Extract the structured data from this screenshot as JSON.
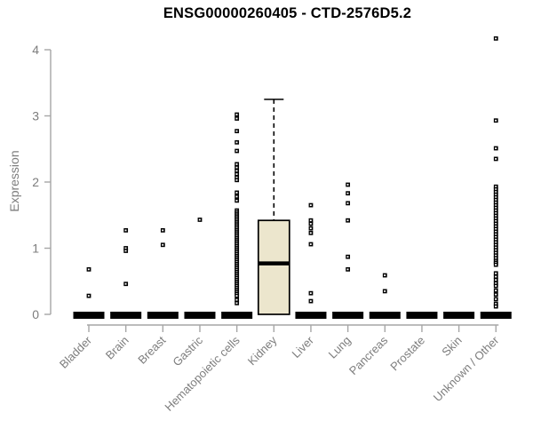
{
  "page": {
    "background_color": "#ffffff"
  },
  "chart_data": {
    "type": "boxplot",
    "title": "ENSG00000260405 - CTD-2576D5.2",
    "ylabel": "Expression",
    "xlabel": "",
    "ylim": [
      0,
      4.2
    ],
    "yticks": [
      0,
      1,
      2,
      3,
      4
    ],
    "grid": "off",
    "legend": "none",
    "colors": {
      "box_fill": "#ece6cd",
      "box_border": "#000000",
      "median": "#000000",
      "outlier": "#000000",
      "axis_line": "#a6a6a6",
      "tick_text": "#7d7d7d",
      "title_text": "#000000"
    },
    "categories": [
      "Bladder",
      "Brain",
      "Breast",
      "Gastric",
      "Hematopoietic cells",
      "Kidney",
      "Liver",
      "Lung",
      "Pancreas",
      "Prostate",
      "Skin",
      "Unknown / Other"
    ],
    "groups": [
      {
        "name": "Bladder",
        "median": 0,
        "q1": 0,
        "q3": 0,
        "whisker_low": 0,
        "whisker_high": 0,
        "outliers": [
          0.68,
          0.28
        ]
      },
      {
        "name": "Brain",
        "median": 0,
        "q1": 0,
        "q3": 0,
        "whisker_low": 0,
        "whisker_high": 0,
        "outliers": [
          1.27,
          1.0,
          0.96,
          0.46
        ]
      },
      {
        "name": "Breast",
        "median": 0,
        "q1": 0,
        "q3": 0,
        "whisker_low": 0,
        "whisker_high": 0,
        "outliers": [
          1.27,
          1.05
        ]
      },
      {
        "name": "Gastric",
        "median": 0,
        "q1": 0,
        "q3": 0,
        "whisker_low": 0,
        "whisker_high": 0,
        "outliers": [
          1.43
        ]
      },
      {
        "name": "Hematopoietic cells",
        "median": 0,
        "q1": 0,
        "q3": 0,
        "whisker_low": 0,
        "whisker_high": 0,
        "outliers": [
          3.02,
          2.96,
          2.77,
          2.6,
          2.47,
          2.27,
          2.22,
          2.17,
          2.12,
          2.07,
          2.03,
          1.84,
          1.78,
          1.72,
          1.57,
          1.54,
          1.51,
          1.48,
          1.45,
          1.42,
          1.39,
          1.36,
          1.33,
          1.3,
          1.27,
          1.24,
          1.21,
          1.18,
          1.15,
          1.12,
          1.09,
          1.06,
          1.03,
          1.0,
          0.97,
          0.94,
          0.91,
          0.88,
          0.85,
          0.82,
          0.79,
          0.76,
          0.73,
          0.7,
          0.67,
          0.64,
          0.61,
          0.58,
          0.55,
          0.52,
          0.49,
          0.46,
          0.43,
          0.4,
          0.37,
          0.34,
          0.31,
          0.28,
          0.22,
          0.17
        ]
      },
      {
        "name": "Kidney",
        "median": 0.77,
        "q1": 0,
        "q3": 1.42,
        "whisker_low": 0,
        "whisker_high": 3.25,
        "outliers": []
      },
      {
        "name": "Liver",
        "median": 0,
        "q1": 0,
        "q3": 0,
        "whisker_low": 0,
        "whisker_high": 0,
        "outliers": [
          1.65,
          1.42,
          1.37,
          1.3,
          1.23,
          1.06,
          0.32,
          0.2
        ]
      },
      {
        "name": "Lung",
        "median": 0,
        "q1": 0,
        "q3": 0,
        "whisker_low": 0,
        "whisker_high": 0,
        "outliers": [
          1.96,
          1.83,
          1.68,
          1.42,
          0.87,
          0.68
        ]
      },
      {
        "name": "Pancreas",
        "median": 0,
        "q1": 0,
        "q3": 0,
        "whisker_low": 0,
        "whisker_high": 0,
        "outliers": [
          0.59,
          0.35
        ]
      },
      {
        "name": "Prostate",
        "median": 0,
        "q1": 0,
        "q3": 0,
        "whisker_low": 0,
        "whisker_high": 0,
        "outliers": []
      },
      {
        "name": "Skin",
        "median": 0,
        "q1": 0,
        "q3": 0,
        "whisker_low": 0,
        "whisker_high": 0,
        "outliers": []
      },
      {
        "name": "Unknown / Other",
        "median": 0,
        "q1": 0,
        "q3": 0,
        "whisker_low": 0,
        "whisker_high": 0,
        "outliers": [
          4.17,
          2.93,
          2.51,
          2.35,
          1.93,
          1.89,
          1.85,
          1.81,
          1.77,
          1.73,
          1.69,
          1.65,
          1.61,
          1.57,
          1.53,
          1.49,
          1.45,
          1.41,
          1.37,
          1.33,
          1.29,
          1.25,
          1.21,
          1.17,
          1.13,
          1.09,
          1.05,
          1.01,
          0.97,
          0.93,
          0.89,
          0.85,
          0.81,
          0.78,
          0.75,
          0.62,
          0.57,
          0.52,
          0.47,
          0.43,
          0.36,
          0.3,
          0.23,
          0.16,
          0.12
        ]
      }
    ]
  }
}
